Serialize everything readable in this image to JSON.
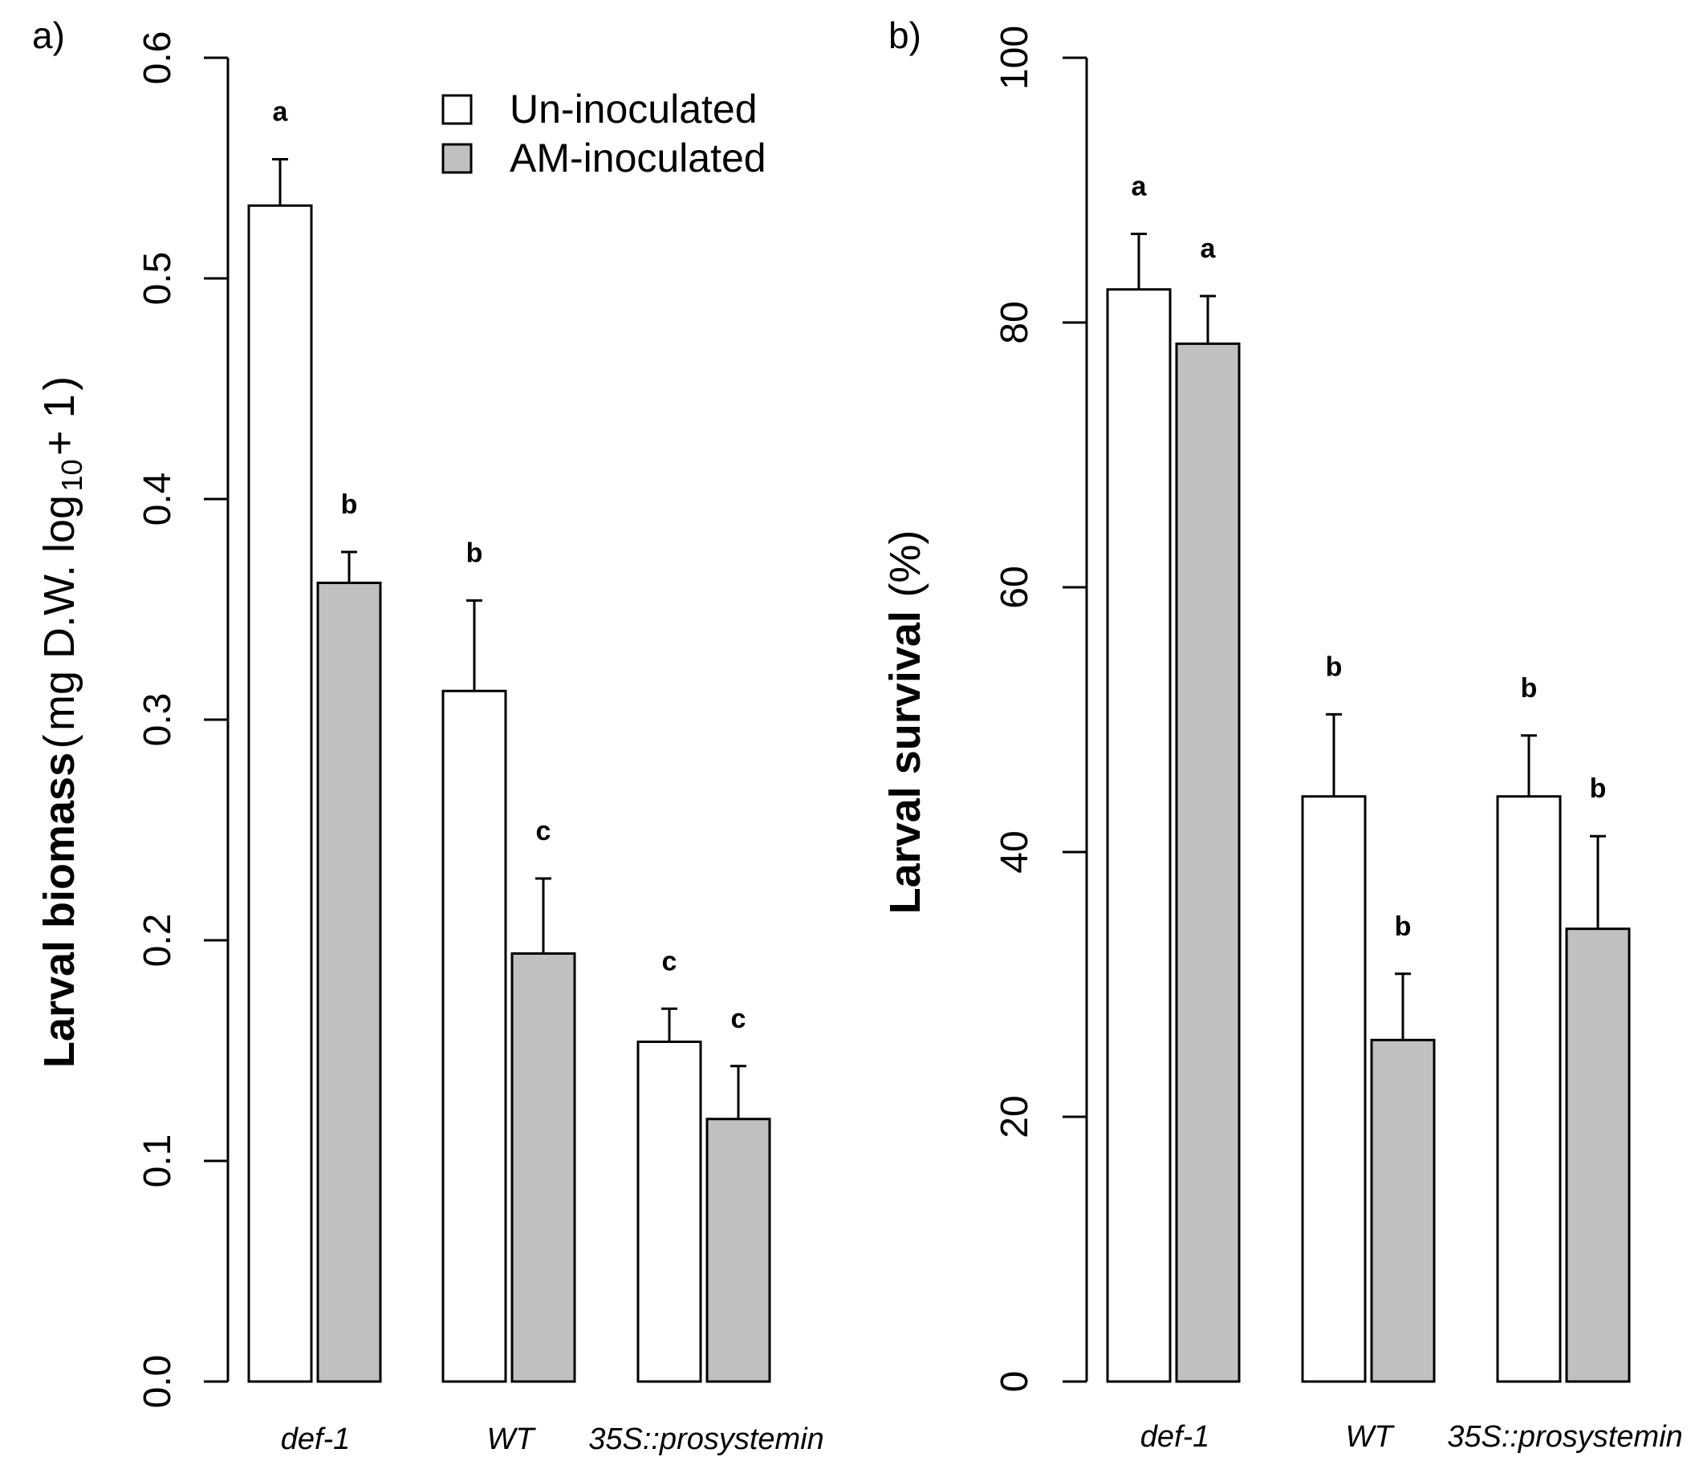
{
  "figure": {
    "panels": [
      "a)",
      "b)"
    ]
  },
  "legend": {
    "items": [
      {
        "label": "Un-inoculated",
        "color": "#ffffff"
      },
      {
        "label": "AM-inoculated",
        "color": "#c0c0c0"
      }
    ]
  },
  "chart_data": [
    {
      "type": "bar",
      "panel": "a)",
      "title": "",
      "xlabel": "",
      "ylabel": "Larval biomass (mg D.W. log10 + 1)",
      "ylabel_parts": {
        "bold": "Larval biomass",
        "open": "(",
        "main": "mg D.W. log",
        "sub": "10",
        "tail": " + 1",
        "close": ")"
      },
      "ylim": [
        0,
        0.6
      ],
      "yticks": [
        0,
        0.1,
        0.2,
        0.3,
        0.4,
        0.5,
        0.6
      ],
      "ytick_labels": [
        "0.0",
        "0.1",
        "0.2",
        "0.3",
        "0.4",
        "0.5",
        "0.6"
      ],
      "categories": [
        "def-1",
        "WT",
        "35S::prosystemin"
      ],
      "series": [
        {
          "name": "Un-inoculated",
          "color": "#ffffff",
          "values": [
            0.533,
            0.313,
            0.154
          ],
          "errors": [
            0.021,
            0.041,
            0.015
          ],
          "letters": [
            "a",
            "b",
            "c"
          ]
        },
        {
          "name": "AM-inoculated",
          "color": "#c0c0c0",
          "values": [
            0.362,
            0.194,
            0.119
          ],
          "errors": [
            0.014,
            0.034,
            0.024
          ],
          "letters": [
            "b",
            "c",
            "c"
          ]
        }
      ]
    },
    {
      "type": "bar",
      "panel": "b)",
      "title": "",
      "xlabel": "",
      "ylabel": "Larval survival (%)",
      "ylabel_parts": {
        "bold": "Larval survival",
        "normal": "(%)"
      },
      "ylim": [
        0,
        100
      ],
      "yticks": [
        0,
        20,
        40,
        60,
        80,
        100
      ],
      "ytick_labels": [
        "0",
        "20",
        "40",
        "60",
        "80",
        "100"
      ],
      "categories": [
        "def-1",
        "WT",
        "35S::prosystemin"
      ],
      "series": [
        {
          "name": "Un-inoculated",
          "color": "#ffffff",
          "values": [
            82.5,
            44.2,
            44.2
          ],
          "errors": [
            4.2,
            6.2,
            4.6
          ],
          "letters": [
            "a",
            "b",
            "b"
          ]
        },
        {
          "name": "AM-inoculated",
          "color": "#c0c0c0",
          "values": [
            78.4,
            25.8,
            34.2
          ],
          "errors": [
            3.6,
            5.0,
            7.0
          ],
          "letters": [
            "a",
            "b",
            "b"
          ]
        }
      ]
    }
  ]
}
